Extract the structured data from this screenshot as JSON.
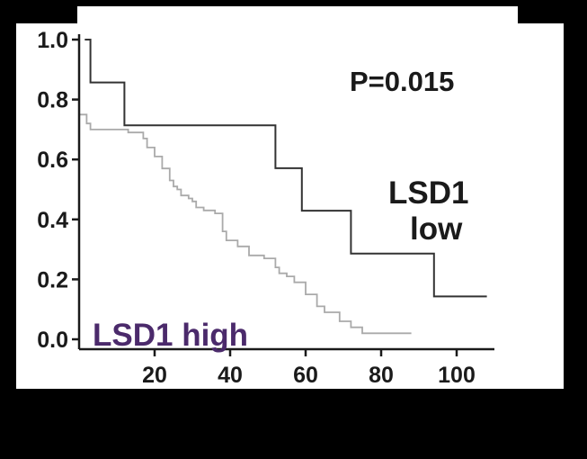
{
  "chart_data": {
    "type": "line",
    "title": "",
    "xlabel": "",
    "ylabel": "",
    "xlim": [
      0,
      110
    ],
    "ylim": [
      0,
      1.0
    ],
    "x_ticks": [
      20,
      40,
      60,
      80,
      100
    ],
    "x_tick_labels": [
      "20",
      "40",
      "60",
      "80",
      "100"
    ],
    "y_ticks": [
      0.0,
      0.2,
      0.4,
      0.6,
      0.8,
      1.0
    ],
    "y_tick_labels": [
      "0.0",
      "0.2",
      "0.4",
      "0.6",
      "0.8",
      "1.0"
    ],
    "grid": false,
    "annotations": {
      "p_value": "P=0.015",
      "low_label_line1": "LSD1",
      "low_label_line2": "low",
      "high_label": "LSD1 high"
    },
    "series": [
      {
        "name": "LSD1 low",
        "color": "#333333",
        "x": [
          1.5,
          3,
          12,
          52,
          59,
          72,
          94,
          108
        ],
        "y": [
          1.0,
          0.857,
          0.714,
          0.571,
          0.429,
          0.286,
          0.143,
          0.143
        ]
      },
      {
        "name": "LSD1 high",
        "color": "#aaaaaa",
        "x": [
          0,
          2,
          3,
          13,
          17,
          18,
          20,
          22,
          24,
          25,
          26,
          27,
          29,
          30,
          31,
          33,
          36,
          38,
          39,
          42,
          43,
          45,
          49,
          52,
          53,
          55,
          57,
          60,
          63,
          65,
          69,
          72,
          75,
          88
        ],
        "y": [
          0.75,
          0.72,
          0.7,
          0.69,
          0.67,
          0.64,
          0.61,
          0.57,
          0.53,
          0.51,
          0.5,
          0.48,
          0.47,
          0.46,
          0.44,
          0.43,
          0.42,
          0.36,
          0.33,
          0.31,
          0.31,
          0.28,
          0.27,
          0.24,
          0.22,
          0.21,
          0.19,
          0.15,
          0.11,
          0.09,
          0.06,
          0.04,
          0.02,
          0.02
        ]
      }
    ]
  },
  "colors": {
    "page_background": "#000000",
    "plot_background": "#ffffff",
    "high_label_color": "#4b2a6b",
    "axis_color": "#1a1a1a"
  }
}
